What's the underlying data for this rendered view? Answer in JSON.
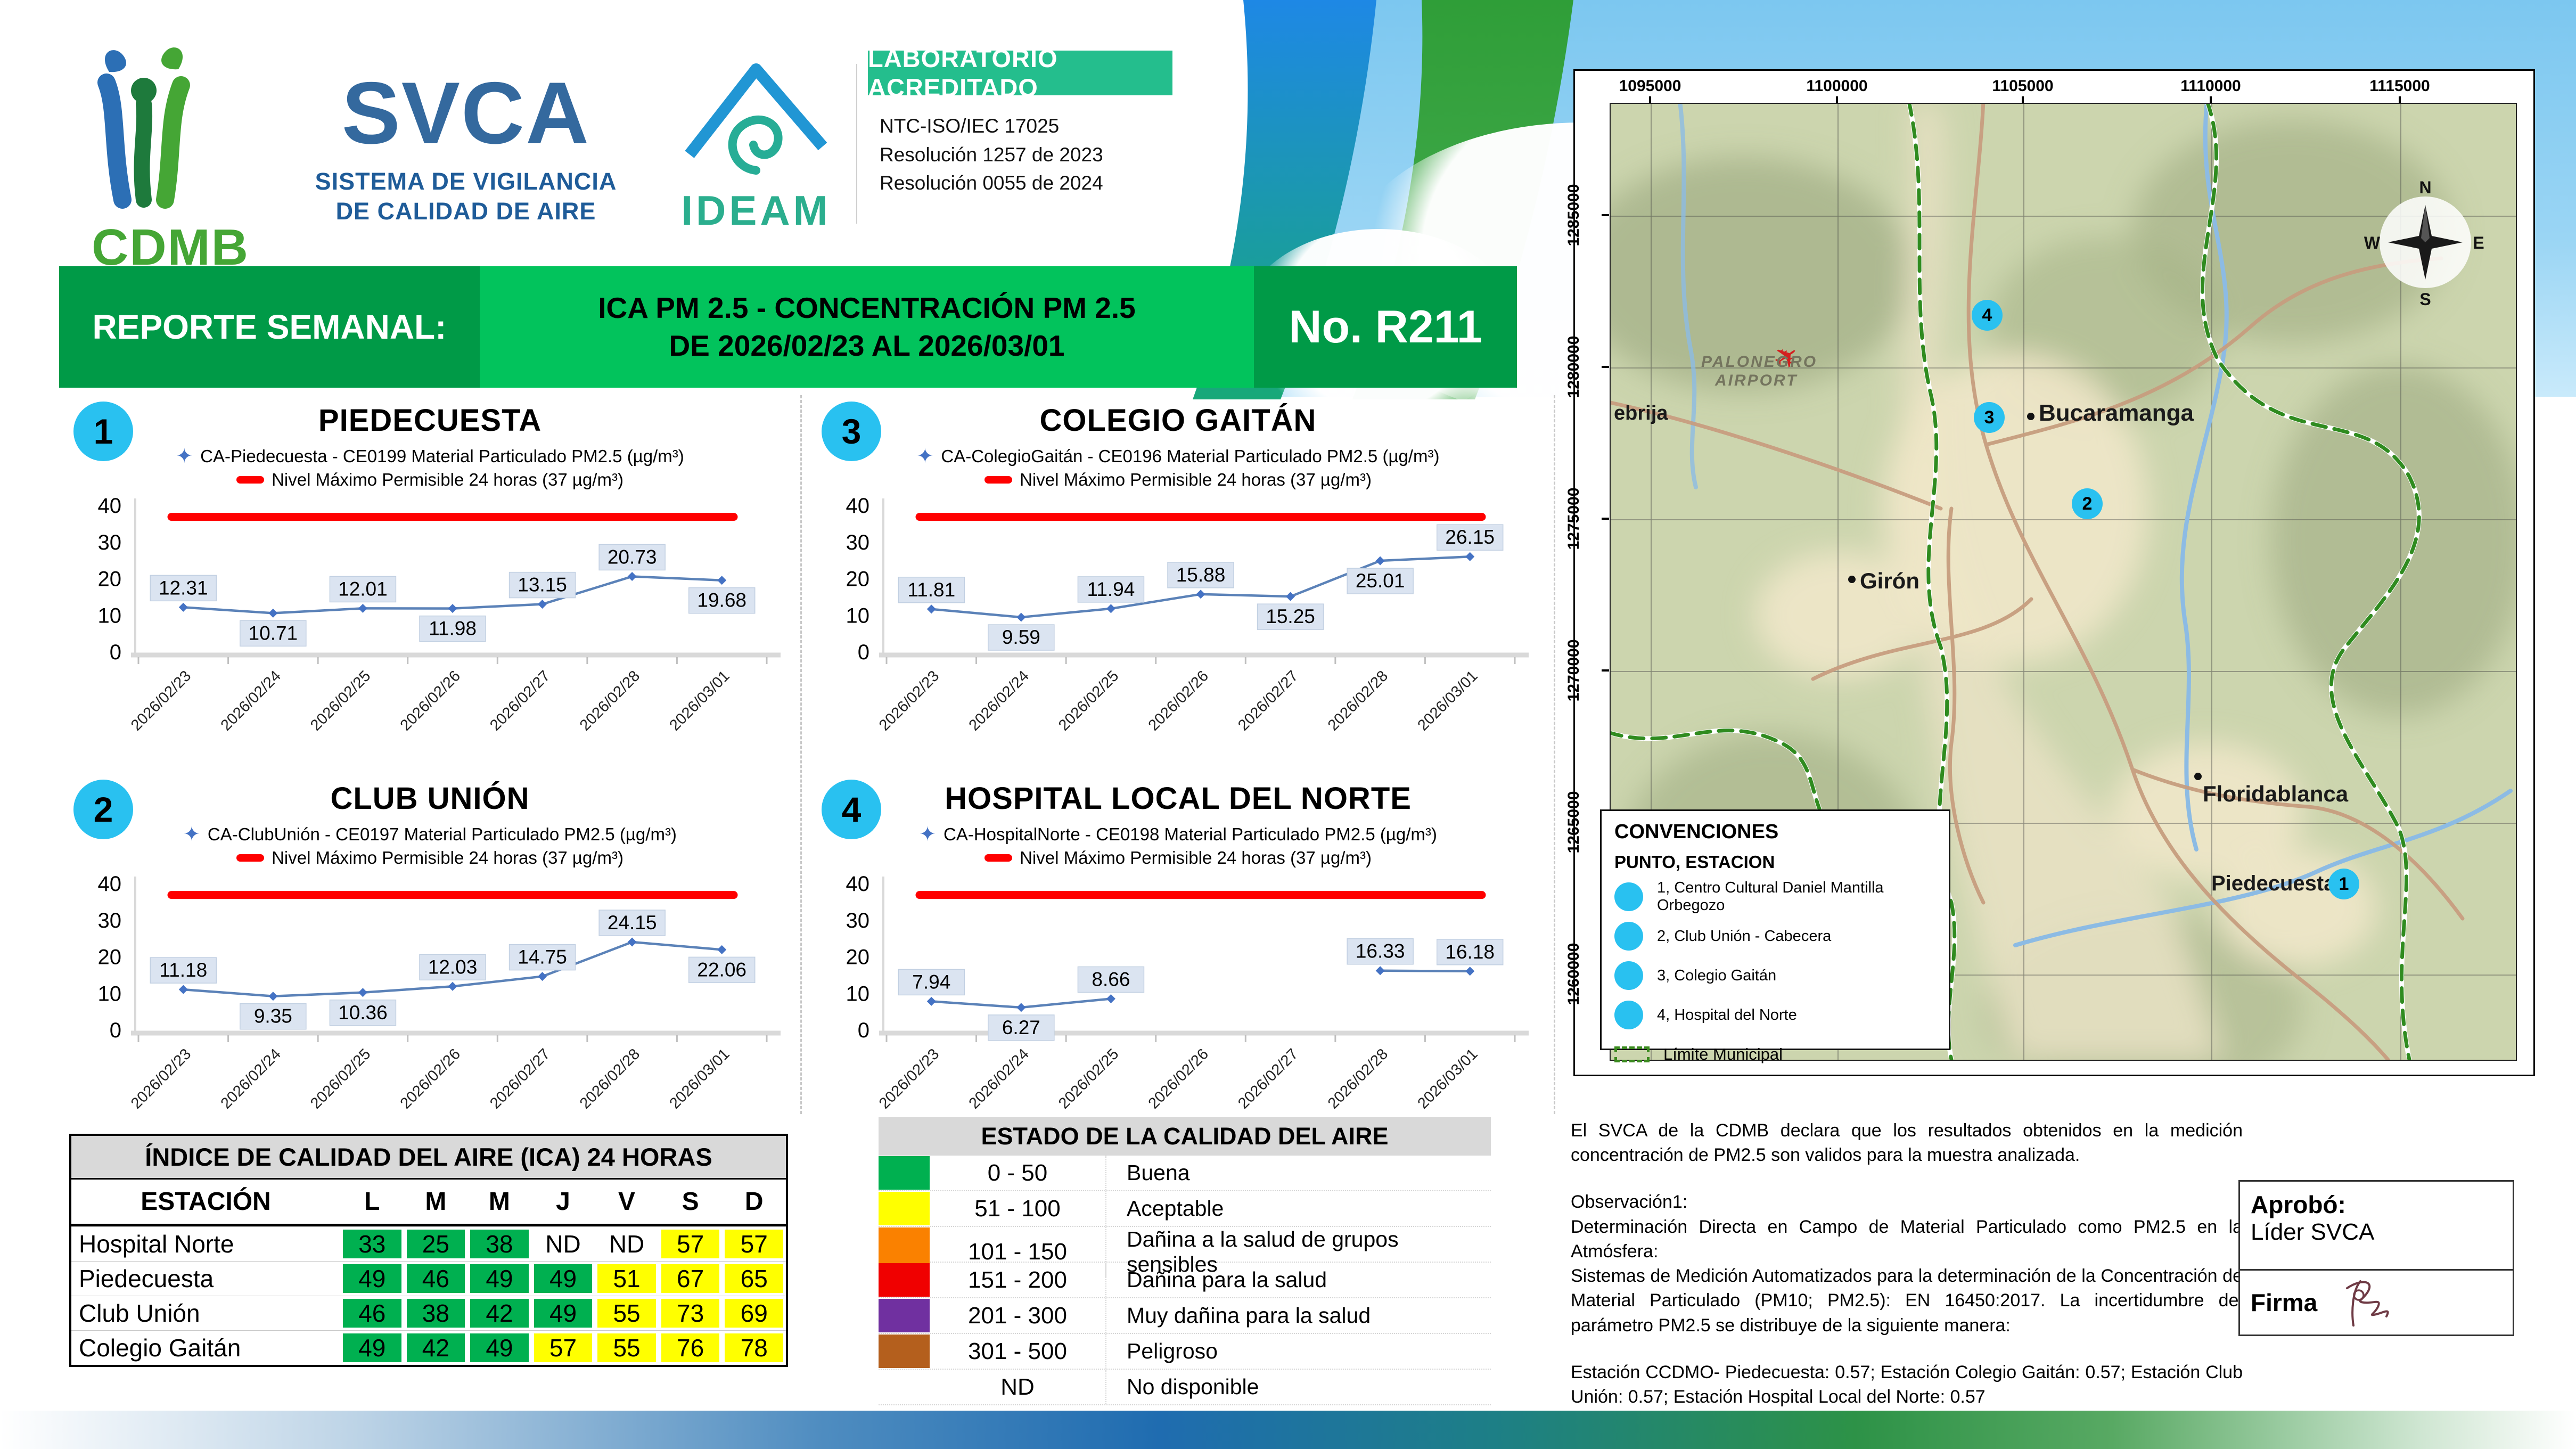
{
  "header": {
    "cdmb": "CDMB",
    "svca": "SVCA",
    "svca_subtitle_1": "SISTEMA DE VIGILANCIA",
    "svca_subtitle_2": "DE CALIDAD DE AIRE",
    "ideam": "IDEAM",
    "badge": "LABORATORIO ACREDITADO",
    "accreditation": [
      "NTC-ISO/IEC 17025",
      "Resolución 1257 de 2023",
      "Resolución 0055 de 2024"
    ]
  },
  "banner": {
    "label": "REPORTE SEMANAL:",
    "title_line1": "ICA PM 2.5 - CONCENTRACIÓN PM 2.5",
    "title_line2": "DE 2026/02/23 AL 2026/03/01",
    "number": "No. R211"
  },
  "dates": [
    "2026/02/23",
    "2026/02/24",
    "2026/02/25",
    "2026/02/26",
    "2026/02/27",
    "2026/02/28",
    "2026/03/01"
  ],
  "chart_data": [
    {
      "type": "line",
      "number": "1",
      "title": "PIEDECUESTA",
      "series_label": "CA-Piedecuesta - CE0199 Material Particulado PM2.5 (µg/m³)",
      "limit_label": "Nivel Máximo Permisible 24 horas (37 µg/m³)",
      "limit": 37,
      "ylim": [
        0,
        40
      ],
      "y_ticks": [
        0,
        10,
        20,
        30,
        40
      ],
      "values": [
        12.31,
        10.71,
        12.01,
        11.98,
        13.15,
        20.73,
        19.68
      ],
      "label_pos": [
        "a",
        "b",
        "a",
        "b",
        "a",
        "a",
        "b"
      ]
    },
    {
      "type": "line",
      "number": "2",
      "title": "CLUB UNIÓN",
      "series_label": "CA-ClubUnión - CE0197 Material Particulado PM2.5 (µg/m³)",
      "limit_label": "Nivel Máximo Permisible 24 horas (37 µg/m³)",
      "limit": 37,
      "ylim": [
        0,
        40
      ],
      "y_ticks": [
        0,
        10,
        20,
        30,
        40
      ],
      "values": [
        11.18,
        9.35,
        10.36,
        12.03,
        14.75,
        24.15,
        22.06
      ],
      "label_pos": [
        "a",
        "b",
        "b",
        "a",
        "a",
        "a",
        "b"
      ]
    },
    {
      "type": "line",
      "number": "3",
      "title": "COLEGIO GAITÁN",
      "series_label": "CA-ColegioGaitán - CE0196 Material Particulado PM2.5 (µg/m³)",
      "limit_label": "Nivel Máximo Permisible 24 horas (37 µg/m³)",
      "limit": 37,
      "ylim": [
        0,
        40
      ],
      "y_ticks": [
        0,
        10,
        20,
        30,
        40
      ],
      "values": [
        11.81,
        9.59,
        11.94,
        15.88,
        15.25,
        25.01,
        26.15
      ],
      "label_pos": [
        "a",
        "b",
        "a",
        "a",
        "b",
        "b",
        "a"
      ]
    },
    {
      "type": "line",
      "number": "4",
      "title": "HOSPITAL LOCAL DEL NORTE",
      "series_label": "CA-HospitalNorte - CE0198 Material Particulado PM2.5 (µg/m³)",
      "limit_label": "Nivel Máximo Permisible 24 horas (37 µg/m³)",
      "limit": 37,
      "ylim": [
        0,
        40
      ],
      "y_ticks": [
        0,
        10,
        20,
        30,
        40
      ],
      "values": [
        7.94,
        6.27,
        8.66,
        null,
        null,
        16.33,
        16.18
      ],
      "label_pos": [
        "a",
        "b",
        "a",
        "a",
        "a",
        "a",
        "a"
      ]
    }
  ],
  "ica_table": {
    "title": "ÍNDICE DE CALIDAD DEL AIRE (ICA) 24 HORAS",
    "station_header": "ESTACIÓN",
    "day_headers": [
      "L",
      "M",
      "M",
      "J",
      "V",
      "S",
      "D"
    ],
    "rows": [
      {
        "station": "Hospital Norte",
        "values": [
          "33",
          "25",
          "38",
          "ND",
          "ND",
          "57",
          "57"
        ],
        "colors": [
          "green",
          "green",
          "green",
          "none",
          "none",
          "yellow",
          "yellow"
        ]
      },
      {
        "station": "Piedecuesta",
        "values": [
          "49",
          "46",
          "49",
          "49",
          "51",
          "67",
          "65"
        ],
        "colors": [
          "green",
          "green",
          "green",
          "green",
          "yellow",
          "yellow",
          "yellow"
        ]
      },
      {
        "station": "Club Unión",
        "values": [
          "46",
          "38",
          "42",
          "49",
          "55",
          "73",
          "69"
        ],
        "colors": [
          "green",
          "green",
          "green",
          "green",
          "yellow",
          "yellow",
          "yellow"
        ]
      },
      {
        "station": "Colegio Gaitán",
        "values": [
          "49",
          "42",
          "49",
          "57",
          "55",
          "76",
          "78"
        ],
        "colors": [
          "green",
          "green",
          "green",
          "yellow",
          "yellow",
          "yellow",
          "yellow"
        ]
      }
    ]
  },
  "estado": {
    "title": "ESTADO DE LA CALIDAD DEL AIRE",
    "rows": [
      {
        "range": "0 - 50",
        "label": "Buena",
        "color": "#00B050"
      },
      {
        "range": "51 - 100",
        "label": "Aceptable",
        "color": "#FFFF00"
      },
      {
        "range": "101 - 150",
        "label": "Dañina a la salud de grupos sensibles",
        "color": "#FA8100"
      },
      {
        "range": "151 - 200",
        "label": "Dañina para la salud",
        "color": "#F00000"
      },
      {
        "range": "201 - 300",
        "label": "Muy dañina para la salud",
        "color": "#7030A0"
      },
      {
        "range": "301 - 500",
        "label": "Peligroso",
        "color": "#B45F1D"
      },
      {
        "range": "ND",
        "label": "No disponible",
        "color": null
      }
    ]
  },
  "map": {
    "x_axis_labels": [
      "1095000",
      "1100000",
      "1105000",
      "1110000",
      "1115000"
    ],
    "y_axis_labels": [
      "1285000",
      "1280000",
      "1275000",
      "1270000",
      "1265000",
      "1260000"
    ],
    "cities": [
      "Bucaramanga",
      "Floridablanca",
      "Girón",
      "Piedecuesta",
      "ebrija"
    ],
    "airport_line1": "PALONEGRO",
    "airport_line2": "AIRPORT",
    "compass": [
      "N",
      "E",
      "S",
      "W"
    ],
    "markers": [
      "1",
      "2",
      "3",
      "4"
    ],
    "legend": {
      "title": "CONVENCIONES",
      "subtitle": "PUNTO, ESTACION",
      "items": [
        "1, Centro Cultural Daniel Mantilla Orbegozo",
        "2, Club Unión - Cabecera",
        "3, Colegio Gaitán",
        "4, Hospital del Norte"
      ],
      "limite": "Límite Municipal"
    }
  },
  "notes": {
    "p1": "El SVCA  de la CDMB declara que los resultados obtenidos en la medición concentración de PM2.5 son validos para la muestra  analizada.",
    "p2": "Observación1:",
    "p3": "Determinación Directa en Campo de Material Particulado como PM2.5 en la Atmósfera:",
    "p4": "Sistemas de Medición Automatizados para la  determinación de la Concentración de Material Particulado (PM10;  PM2.5): EN 16450:2017. La incertidumbre del parámetro PM2.5 se distribuye de la siguiente manera:",
    "p5": "Estación  CCDMO-  Piedecuesta:  0.57;  Estación  Colegio  Gaitán:  0.57;  Estación Club Unión: 0.57; Estación Hospital Local del Norte: 0.57"
  },
  "approval": {
    "label": "Aprobó:",
    "role": "Líder SVCA",
    "firma": "Firma"
  },
  "colors": {
    "banner_dark_green": "#009A47",
    "banner_light_green": "#02C35C",
    "badge_green": "#24BE8D",
    "station_cyan": "#29C1F0",
    "table_green": "#00B050",
    "table_yellow": "#FFFF00",
    "limit_red": "#FF0000",
    "series_blue": "#5B82B8",
    "label_box": "#DBE4F1"
  }
}
